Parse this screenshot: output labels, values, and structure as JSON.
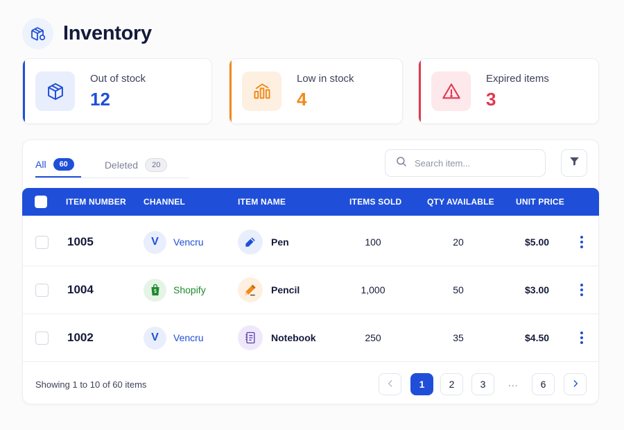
{
  "page": {
    "title": "Inventory",
    "header_icon": "inventory-box-icon"
  },
  "stats": [
    {
      "label": "Out of stock",
      "value": "12",
      "icon": "box-icon",
      "accent": "#1f4fd8",
      "icon_bg": "#e8eefc"
    },
    {
      "label": "Low in stock",
      "value": "4",
      "icon": "bar-chart-icon",
      "accent": "#f08a1c",
      "icon_bg": "#fdf0e1"
    },
    {
      "label": "Expired items",
      "value": "3",
      "icon": "warning-icon",
      "accent": "#e0384f",
      "icon_bg": "#fde8ec"
    }
  ],
  "tabs": [
    {
      "label": "All",
      "count": "60",
      "active": true
    },
    {
      "label": "Deleted",
      "count": "20",
      "active": false
    }
  ],
  "search": {
    "placeholder": "Search item..."
  },
  "table": {
    "columns": [
      "ITEM NUMBER",
      "CHANNEL",
      "ITEM NAME",
      "ITEMS SOLD",
      "QTY AVAILABLE",
      "UNIT PRICE"
    ],
    "rows": [
      {
        "item_number": "1005",
        "channel": {
          "name": "Vencru",
          "badge": "V",
          "icon": "vencru-logo-icon"
        },
        "item": {
          "name": "Pen",
          "icon": "pen-icon"
        },
        "items_sold": "100",
        "qty_available": "20",
        "unit_price": "$5.00"
      },
      {
        "item_number": "1004",
        "channel": {
          "name": "Shopify",
          "badge": "",
          "icon": "shopify-bag-icon"
        },
        "item": {
          "name": "Pencil",
          "icon": "pencil-icon"
        },
        "items_sold": "1,000",
        "qty_available": "50",
        "unit_price": "$3.00"
      },
      {
        "item_number": "1002",
        "channel": {
          "name": "Vencru",
          "badge": "V",
          "icon": "vencru-logo-icon"
        },
        "item": {
          "name": "Notebook",
          "icon": "notebook-icon"
        },
        "items_sold": "250",
        "qty_available": "35",
        "unit_price": "$4.50"
      }
    ]
  },
  "footer": {
    "showing": "Showing 1 to 10 of 60 items",
    "pages": [
      "1",
      "2",
      "3",
      "6"
    ],
    "current_page": "1",
    "ellipsis": "..."
  },
  "colors": {
    "primary": "#1f4fd8",
    "orange": "#f08a1c",
    "red": "#e0384f",
    "shopify_green": "#1e8a2e",
    "vencru_blue": "#1f4fd8"
  }
}
